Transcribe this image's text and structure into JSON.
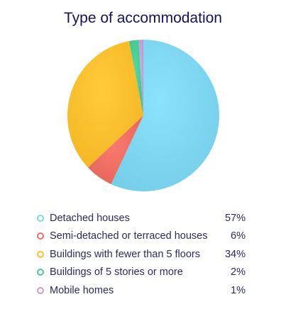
{
  "chart_data": {
    "type": "pie",
    "title": "Type of accommodation",
    "legend_position": "bottom",
    "slices": [
      {
        "label": "Detached houses",
        "value": 57,
        "display": "57%",
        "color": "#7ed6f0"
      },
      {
        "label": "Semi-detached or terraced houses",
        "value": 6,
        "display": "6%",
        "color": "#ee6e62"
      },
      {
        "label": "Buildings with fewer than 5 floors",
        "value": 34,
        "display": "34%",
        "color": "#fdbf2d"
      },
      {
        "label": "Buildings of 5 stories or more",
        "value": 2,
        "display": "2%",
        "color": "#45cc96"
      },
      {
        "label": "Mobile homes",
        "value": 1,
        "display": "1%",
        "color": "#c49fd6"
      }
    ]
  }
}
